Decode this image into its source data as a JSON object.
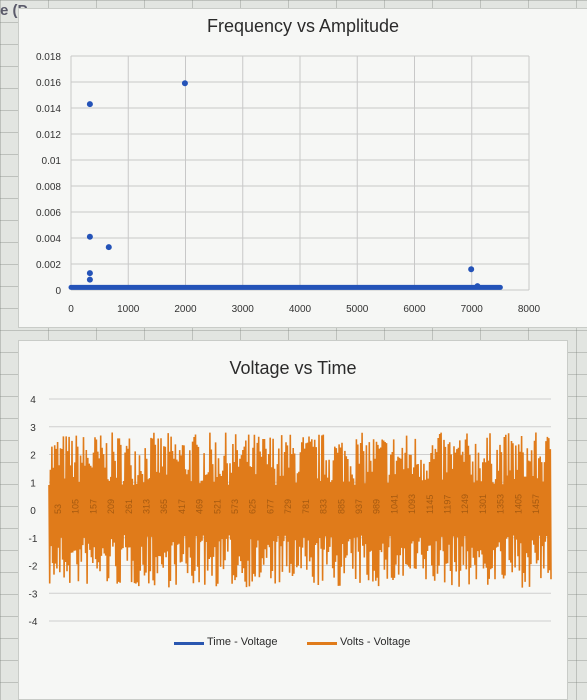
{
  "cell_ref": "e (P",
  "chart_data": [
    {
      "type": "scatter",
      "title": "Frequency vs Amplitude",
      "xlabel": "",
      "ylabel": "",
      "xlim": [
        0,
        8000
      ],
      "ylim": [
        0,
        0.018
      ],
      "x_ticks": [
        "0",
        "1000",
        "2000",
        "3000",
        "4000",
        "5000",
        "6000",
        "7000",
        "8000"
      ],
      "y_ticks": [
        "0",
        "0.002",
        "0.004",
        "0.006",
        "0.008",
        "0.01",
        "0.012",
        "0.014",
        "0.016",
        "0.018"
      ],
      "color": "#2453b8",
      "points": [
        {
          "x": 330,
          "y": 0.0143
        },
        {
          "x": 330,
          "y": 0.0041
        },
        {
          "x": 330,
          "y": 0.0013
        },
        {
          "x": 330,
          "y": 0.0008
        },
        {
          "x": 660,
          "y": 0.0033
        },
        {
          "x": 1990,
          "y": 0.0159
        },
        {
          "x": 6990,
          "y": 0.0016
        },
        {
          "x": 7100,
          "y": 0.0003
        }
      ],
      "baseline": {
        "x_start": 0,
        "x_end": 7500,
        "y": 0.0002
      }
    },
    {
      "type": "line",
      "title": "Voltage vs Time",
      "ylim": [
        -4,
        4
      ],
      "y_ticks": [
        "-4",
        "-3",
        "-2",
        "-1",
        "0",
        "1",
        "2",
        "3",
        "4"
      ],
      "x_ticks": [
        "53",
        "105",
        "157",
        "209",
        "261",
        "313",
        "365",
        "417",
        "469",
        "521",
        "573",
        "625",
        "677",
        "729",
        "781",
        "833",
        "885",
        "937",
        "989",
        "1041",
        "1093",
        "1145",
        "1197",
        "1249",
        "1301",
        "1353",
        "1405",
        "1457"
      ],
      "series": [
        {
          "name": "Time - Voltage",
          "color": "#2a57b0"
        },
        {
          "name": "Volts - Voltage",
          "color": "#e07b1a",
          "range": [
            -2.8,
            2.9
          ],
          "n": 1500
        }
      ]
    }
  ]
}
